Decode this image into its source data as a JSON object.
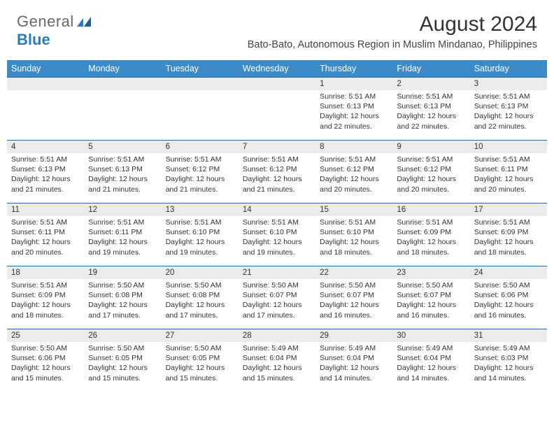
{
  "logo": {
    "text1": "General",
    "text2": "Blue"
  },
  "title": "August 2024",
  "subtitle": "Bato-Bato, Autonomous Region in Muslim Mindanao, Philippines",
  "colors": {
    "header_bg": "#3b8bc8",
    "header_text": "#ffffff",
    "daynum_bg": "#ebebeb",
    "row_border": "#2a6aa0",
    "logo_gray": "#6a6a6a",
    "logo_blue": "#2a7bbf"
  },
  "day_headers": [
    "Sunday",
    "Monday",
    "Tuesday",
    "Wednesday",
    "Thursday",
    "Friday",
    "Saturday"
  ],
  "weeks": [
    [
      {
        "n": "",
        "sr": "",
        "ss": "",
        "dl": ""
      },
      {
        "n": "",
        "sr": "",
        "ss": "",
        "dl": ""
      },
      {
        "n": "",
        "sr": "",
        "ss": "",
        "dl": ""
      },
      {
        "n": "",
        "sr": "",
        "ss": "",
        "dl": ""
      },
      {
        "n": "1",
        "sr": "Sunrise: 5:51 AM",
        "ss": "Sunset: 6:13 PM",
        "dl": "Daylight: 12 hours and 22 minutes."
      },
      {
        "n": "2",
        "sr": "Sunrise: 5:51 AM",
        "ss": "Sunset: 6:13 PM",
        "dl": "Daylight: 12 hours and 22 minutes."
      },
      {
        "n": "3",
        "sr": "Sunrise: 5:51 AM",
        "ss": "Sunset: 6:13 PM",
        "dl": "Daylight: 12 hours and 22 minutes."
      }
    ],
    [
      {
        "n": "4",
        "sr": "Sunrise: 5:51 AM",
        "ss": "Sunset: 6:13 PM",
        "dl": "Daylight: 12 hours and 21 minutes."
      },
      {
        "n": "5",
        "sr": "Sunrise: 5:51 AM",
        "ss": "Sunset: 6:13 PM",
        "dl": "Daylight: 12 hours and 21 minutes."
      },
      {
        "n": "6",
        "sr": "Sunrise: 5:51 AM",
        "ss": "Sunset: 6:12 PM",
        "dl": "Daylight: 12 hours and 21 minutes."
      },
      {
        "n": "7",
        "sr": "Sunrise: 5:51 AM",
        "ss": "Sunset: 6:12 PM",
        "dl": "Daylight: 12 hours and 21 minutes."
      },
      {
        "n": "8",
        "sr": "Sunrise: 5:51 AM",
        "ss": "Sunset: 6:12 PM",
        "dl": "Daylight: 12 hours and 20 minutes."
      },
      {
        "n": "9",
        "sr": "Sunrise: 5:51 AM",
        "ss": "Sunset: 6:12 PM",
        "dl": "Daylight: 12 hours and 20 minutes."
      },
      {
        "n": "10",
        "sr": "Sunrise: 5:51 AM",
        "ss": "Sunset: 6:11 PM",
        "dl": "Daylight: 12 hours and 20 minutes."
      }
    ],
    [
      {
        "n": "11",
        "sr": "Sunrise: 5:51 AM",
        "ss": "Sunset: 6:11 PM",
        "dl": "Daylight: 12 hours and 20 minutes."
      },
      {
        "n": "12",
        "sr": "Sunrise: 5:51 AM",
        "ss": "Sunset: 6:11 PM",
        "dl": "Daylight: 12 hours and 19 minutes."
      },
      {
        "n": "13",
        "sr": "Sunrise: 5:51 AM",
        "ss": "Sunset: 6:10 PM",
        "dl": "Daylight: 12 hours and 19 minutes."
      },
      {
        "n": "14",
        "sr": "Sunrise: 5:51 AM",
        "ss": "Sunset: 6:10 PM",
        "dl": "Daylight: 12 hours and 19 minutes."
      },
      {
        "n": "15",
        "sr": "Sunrise: 5:51 AM",
        "ss": "Sunset: 6:10 PM",
        "dl": "Daylight: 12 hours and 18 minutes."
      },
      {
        "n": "16",
        "sr": "Sunrise: 5:51 AM",
        "ss": "Sunset: 6:09 PM",
        "dl": "Daylight: 12 hours and 18 minutes."
      },
      {
        "n": "17",
        "sr": "Sunrise: 5:51 AM",
        "ss": "Sunset: 6:09 PM",
        "dl": "Daylight: 12 hours and 18 minutes."
      }
    ],
    [
      {
        "n": "18",
        "sr": "Sunrise: 5:51 AM",
        "ss": "Sunset: 6:09 PM",
        "dl": "Daylight: 12 hours and 18 minutes."
      },
      {
        "n": "19",
        "sr": "Sunrise: 5:50 AM",
        "ss": "Sunset: 6:08 PM",
        "dl": "Daylight: 12 hours and 17 minutes."
      },
      {
        "n": "20",
        "sr": "Sunrise: 5:50 AM",
        "ss": "Sunset: 6:08 PM",
        "dl": "Daylight: 12 hours and 17 minutes."
      },
      {
        "n": "21",
        "sr": "Sunrise: 5:50 AM",
        "ss": "Sunset: 6:07 PM",
        "dl": "Daylight: 12 hours and 17 minutes."
      },
      {
        "n": "22",
        "sr": "Sunrise: 5:50 AM",
        "ss": "Sunset: 6:07 PM",
        "dl": "Daylight: 12 hours and 16 minutes."
      },
      {
        "n": "23",
        "sr": "Sunrise: 5:50 AM",
        "ss": "Sunset: 6:07 PM",
        "dl": "Daylight: 12 hours and 16 minutes."
      },
      {
        "n": "24",
        "sr": "Sunrise: 5:50 AM",
        "ss": "Sunset: 6:06 PM",
        "dl": "Daylight: 12 hours and 16 minutes."
      }
    ],
    [
      {
        "n": "25",
        "sr": "Sunrise: 5:50 AM",
        "ss": "Sunset: 6:06 PM",
        "dl": "Daylight: 12 hours and 15 minutes."
      },
      {
        "n": "26",
        "sr": "Sunrise: 5:50 AM",
        "ss": "Sunset: 6:05 PM",
        "dl": "Daylight: 12 hours and 15 minutes."
      },
      {
        "n": "27",
        "sr": "Sunrise: 5:50 AM",
        "ss": "Sunset: 6:05 PM",
        "dl": "Daylight: 12 hours and 15 minutes."
      },
      {
        "n": "28",
        "sr": "Sunrise: 5:49 AM",
        "ss": "Sunset: 6:04 PM",
        "dl": "Daylight: 12 hours and 15 minutes."
      },
      {
        "n": "29",
        "sr": "Sunrise: 5:49 AM",
        "ss": "Sunset: 6:04 PM",
        "dl": "Daylight: 12 hours and 14 minutes."
      },
      {
        "n": "30",
        "sr": "Sunrise: 5:49 AM",
        "ss": "Sunset: 6:04 PM",
        "dl": "Daylight: 12 hours and 14 minutes."
      },
      {
        "n": "31",
        "sr": "Sunrise: 5:49 AM",
        "ss": "Sunset: 6:03 PM",
        "dl": "Daylight: 12 hours and 14 minutes."
      }
    ]
  ]
}
